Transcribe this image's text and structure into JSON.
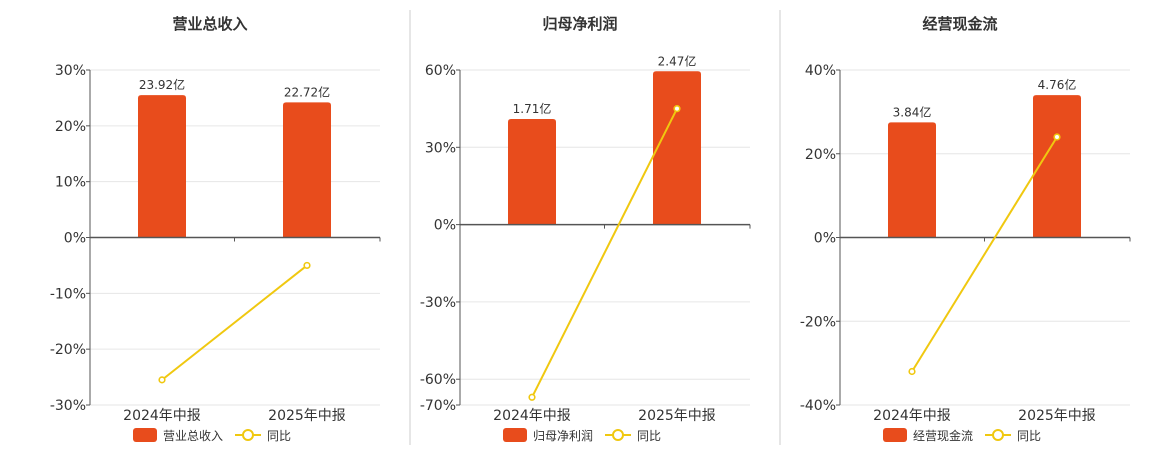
{
  "colors": {
    "bar": "#e84c1c",
    "line": "#f0c810",
    "axis": "#555555",
    "grid": "#e6e6e6",
    "divider": "#cccccc",
    "title": "#333333"
  },
  "chart_data": [
    {
      "type": "bar",
      "title": "营业总收入",
      "categories": [
        "2024年中报",
        "2025年中报"
      ],
      "series": [
        {
          "name": "营业总收入",
          "type": "bar",
          "values": [
            23.92,
            22.72
          ],
          "labels": [
            "23.92亿",
            "22.72亿"
          ],
          "bar_axis_percent": [
            25.5,
            24.2
          ]
        },
        {
          "name": "同比",
          "type": "line",
          "values": [
            -25.5,
            -5.0
          ]
        }
      ],
      "ylim": [
        -30,
        30
      ],
      "yticks": [
        30,
        20,
        10,
        0,
        -10,
        -20,
        -30
      ],
      "ytick_labels": [
        "30%",
        "20%",
        "10%",
        "0%",
        "-10%",
        "-20%",
        "-30%"
      ],
      "grid": true,
      "legend": "bottom"
    },
    {
      "type": "bar",
      "title": "归母净利润",
      "categories": [
        "2024年中报",
        "2025年中报"
      ],
      "series": [
        {
          "name": "归母净利润",
          "type": "bar",
          "values": [
            1.71,
            2.47
          ],
          "labels": [
            "1.71亿",
            "2.47亿"
          ],
          "bar_axis_percent": [
            41.0,
            59.5
          ]
        },
        {
          "name": "同比",
          "type": "line",
          "values": [
            -67.0,
            45.0
          ]
        }
      ],
      "ylim": [
        -70,
        60
      ],
      "yticks": [
        60,
        30,
        0,
        -30,
        -60,
        -70
      ],
      "ytick_labels": [
        "60%",
        "30%",
        "0%",
        "-30%",
        "-60%",
        "-70%"
      ],
      "grid": true,
      "legend": "bottom"
    },
    {
      "type": "bar",
      "title": "经营现金流",
      "categories": [
        "2024年中报",
        "2025年中报"
      ],
      "series": [
        {
          "name": "经营现金流",
          "type": "bar",
          "values": [
            3.84,
            4.76
          ],
          "labels": [
            "3.84亿",
            "4.76亿"
          ],
          "bar_axis_percent": [
            27.5,
            34.0
          ]
        },
        {
          "name": "同比",
          "type": "line",
          "values": [
            -32.0,
            24.0
          ]
        }
      ],
      "ylim": [
        -40,
        40
      ],
      "yticks": [
        40,
        20,
        0,
        -20,
        -40
      ],
      "ytick_labels": [
        "40%",
        "20%",
        "0%",
        "-20%",
        "-40%"
      ],
      "grid": true,
      "legend": "bottom"
    }
  ]
}
